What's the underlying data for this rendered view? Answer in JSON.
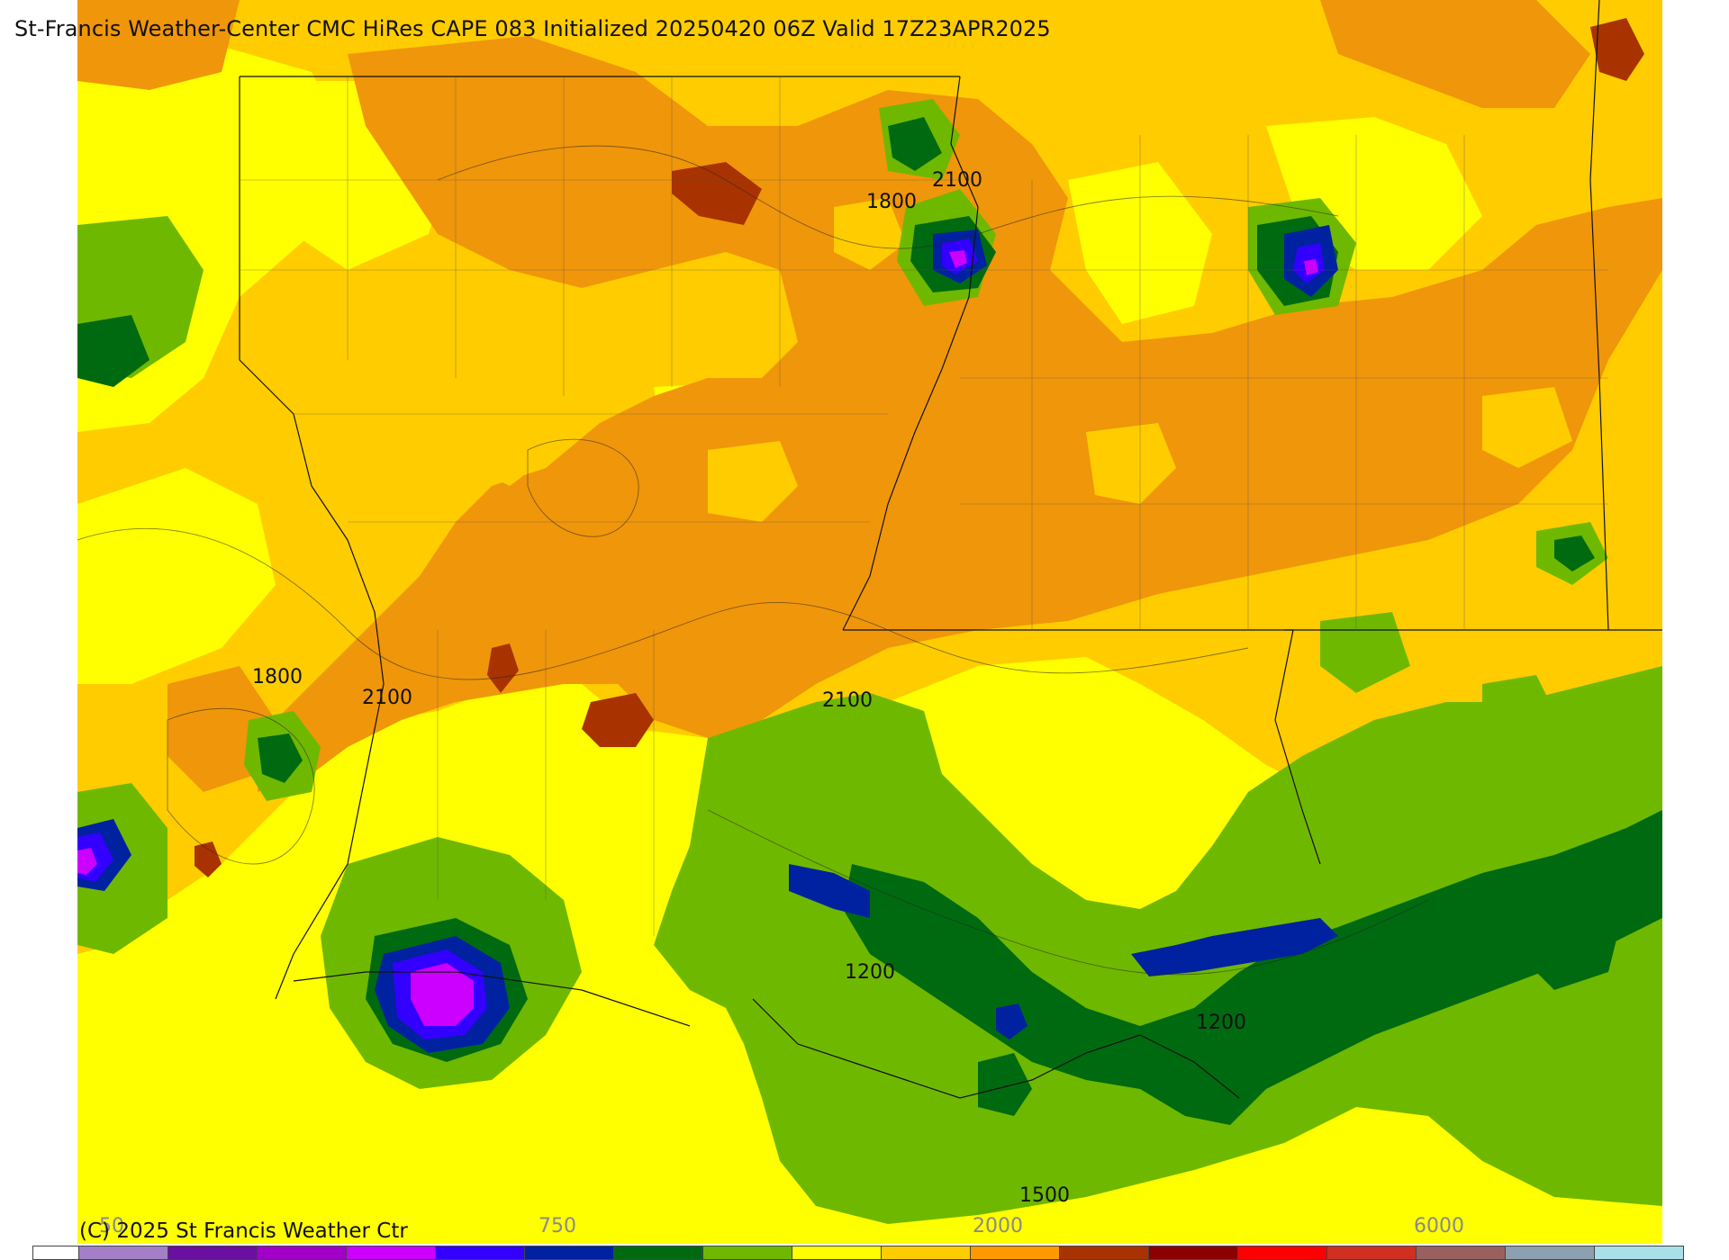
{
  "title": "St-Francis Weather-Center CMC HiRes CAPE  083 Initialized 20250420 06Z Valid 17Z23APR2025",
  "copyright": "(C) 2025 St Francis Weather Ctr",
  "colorbar": {
    "tick_labels": [
      "50",
      "750",
      "2000",
      "6000"
    ],
    "colors": [
      "#ffffff",
      "#a37fc7",
      "#6a0fa0",
      "#a000c8",
      "#cc00ff",
      "#3300ff",
      "#0022a0",
      "#006a10",
      "#6fb800",
      "#ffff00",
      "#ffcc00",
      "#ff9900",
      "#a83300",
      "#8b0000",
      "#ff0000",
      "#d03020",
      "#9a6060",
      "#8ca0b0",
      "#a8e0e8"
    ]
  },
  "contour_labels": [
    "2100",
    "1800",
    "1800",
    "2100",
    "2100",
    "1200",
    "1200",
    "1500"
  ],
  "colors": {
    "yellow": "#ffff00",
    "gold": "#ffcc00",
    "orange": "#f0960a",
    "brown": "#a83300",
    "light_green": "#6fb800",
    "dark_green": "#006a10",
    "blue": "#0022a0",
    "indigo": "#3300ff",
    "violet": "#cc00ff"
  }
}
